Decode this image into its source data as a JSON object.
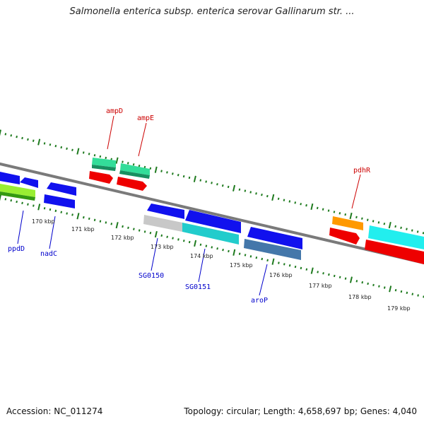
{
  "title": "Salmonella enterica subsp. enterica serovar Gallinarum str. ...",
  "footer": {
    "accession": "Accession: NC_011274",
    "topology": "Topology: circular; Length: 4,658,697 bp; Genes: 4,040"
  },
  "colors": {
    "backbone": "#7a7a7a",
    "ticks": "#1e7a1e",
    "top_label": "#cc0000",
    "bottom_label": "#0000cc"
  },
  "ticks": [
    {
      "label": "170 kbp"
    },
    {
      "label": "171 kbp"
    },
    {
      "label": "172 kbp"
    },
    {
      "label": "173 kbp"
    },
    {
      "label": "174 kbp"
    },
    {
      "label": "175 kbp"
    },
    {
      "label": "176 kbp"
    },
    {
      "label": "177 kbp"
    },
    {
      "label": "178 kbp"
    },
    {
      "label": "179 kbp"
    }
  ],
  "labels": {
    "ampD": "ampD",
    "ampE": "ampE",
    "pdhR": "pdhR",
    "ppdD": "ppdD",
    "nadC": "nadC",
    "SG0150": "SG0150",
    "SG0151": "SG0151",
    "aroP": "aroP"
  }
}
